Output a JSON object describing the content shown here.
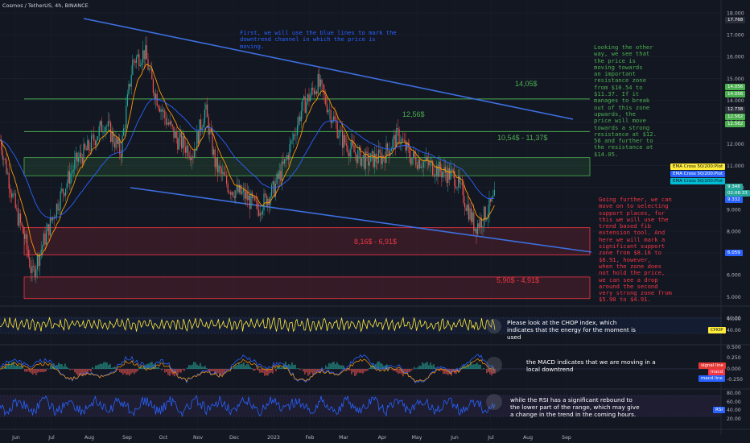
{
  "header": {
    "ticker": "Cosmos / TetherUS, 4h, BINANCE"
  },
  "price_axis": {
    "ticks": [
      "18.000",
      "17.000",
      "16.000",
      "15.000",
      "14.000",
      "13.000",
      "12.000",
      "11.000",
      "10.000",
      "9.000",
      "8.000",
      "7.000",
      "6.000",
      "5.000",
      "4.000"
    ]
  },
  "price_tags": [
    {
      "id": "max",
      "text": "17.768",
      "color": "#2a2e39"
    },
    {
      "id": "z14a",
      "text": "14.056",
      "color": "#4caf50"
    },
    {
      "id": "z14b",
      "text": "14.056",
      "color": "#4caf50"
    },
    {
      "id": "z12a",
      "text": "12.738",
      "color": "#2a2e39"
    },
    {
      "id": "z12b",
      "text": "12.562",
      "color": "#4caf50"
    },
    {
      "id": "z12c",
      "text": "12.562",
      "color": "#4caf50"
    },
    {
      "id": "cur",
      "text": "9.348",
      "color": "#26a69a"
    },
    {
      "id": "countdown",
      "text": "02:08:33",
      "color": "#26a69a"
    },
    {
      "id": "ema",
      "text": "9.332",
      "color": "#2962ff"
    },
    {
      "id": "low",
      "text": "6.059",
      "color": "#2962ff"
    }
  ],
  "ema_legend": [
    "EMA Cross 50/200:Plot",
    "EMA Cross 50/200:Plot",
    "EMA Cross 50/200:Plot"
  ],
  "ema_colors": [
    "#ffeb3b",
    "#2962ff",
    "#00bcd4"
  ],
  "zone_labels": {
    "z14": "14,05$",
    "z12": "12,56$",
    "z10": "10,54$ - 11,37$",
    "z8": "8,16$ - 6,91$",
    "z5": "5,90$ - 4,91$"
  },
  "notes": {
    "blue": "First, we will use the blue lines to mark the\ndowntrend channel in which the price is\nmoving.",
    "green": "Looking the other\nway, we see that\nthe price is\nmoving towards\nan important\nresistance zone\nfrom $10.54 to\n$11.37. If it\nmanages to break\nout of this zone\nupwards, the\nprice will move\ntowards a strong\nresistance at $12.\n56 and further to\nthe resistance at\n$14.05.",
    "red": "Going further, we can\nmove on to selecting\nsupport places, for\nthis we will use the\ntrend based fib\nextension tool. And\nhere we will mark a\nsignificant support\nzone from $8.16 to\n$6.91, however,\nwhen the zone does\nnot hold the price,\nwe can see a drop\naround the second\nvery strong zone from\n$5.90 to $4.91."
  },
  "indicators": {
    "chop": {
      "annotation": "Please look at the CHOP index, which\nindicates that the energy for the moment is\nused",
      "tag": "CHOP",
      "value": "40.00",
      "ticks": [
        "60.00",
        "40.00"
      ]
    },
    "macd": {
      "annotation": "the MACD indicates that we are moving in a\nlocal downtrend",
      "tags": [
        "signal line",
        "macd",
        "macd line"
      ],
      "ticks": [
        "0.500",
        "0.250",
        "0.000",
        "-0.250"
      ]
    },
    "rsi": {
      "annotation": "while the RSI has a significant rebound to\nthe lower part of the range, which may give\na change in the trend in the coming hours.",
      "tag": "RSI",
      "ticks": [
        "80.00",
        "60.00",
        "40.00",
        "20.00"
      ]
    }
  },
  "time_axis": [
    "Jun",
    "Jul",
    "Aug",
    "Sep",
    "Oct",
    "Nov",
    "Dec",
    "2023",
    "Feb",
    "Mar",
    "Apr",
    "May",
    "Jun",
    "Jul",
    "Aug",
    "Sep"
  ],
  "colors": {
    "green": "#4caf50",
    "red": "#f23645",
    "blue": "#2962ff",
    "yellow": "#ffeb3b",
    "bg": "#131722"
  }
}
